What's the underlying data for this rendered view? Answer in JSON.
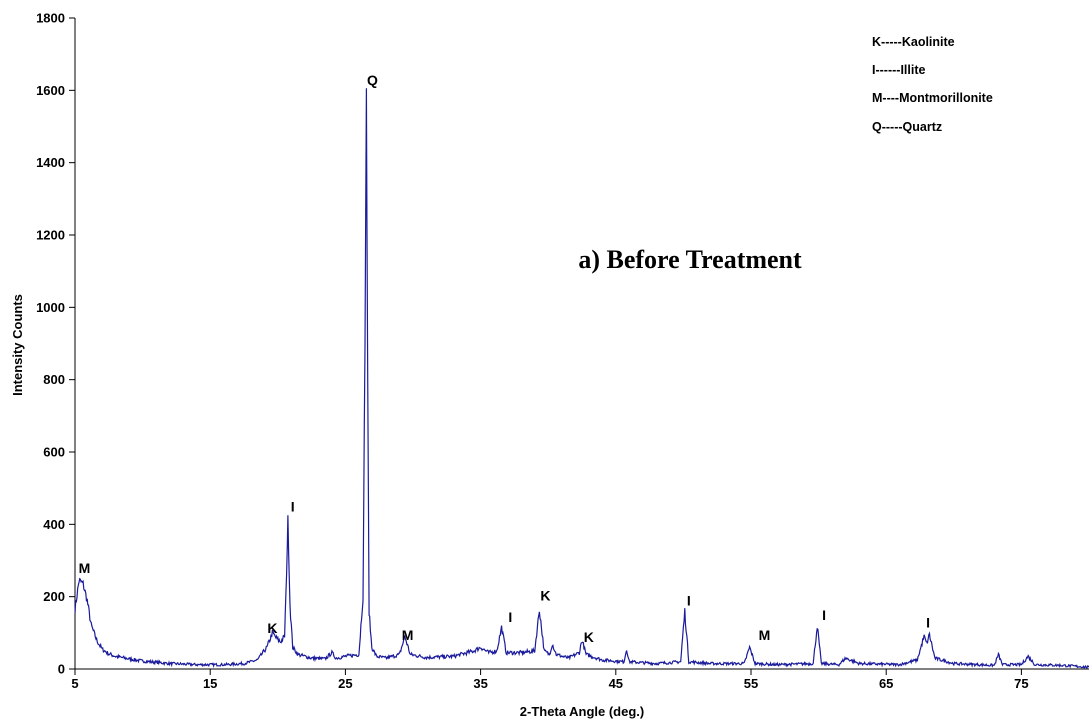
{
  "chart_data": {
    "type": "line",
    "title": "a) Before Treatment",
    "xlabel": "2-Theta Angle (deg.)",
    "ylabel": "Intensity Counts",
    "xlim": [
      5,
      80
    ],
    "ylim": [
      0,
      1800
    ],
    "x_ticks": [
      "5",
      "15",
      "25",
      "35",
      "45",
      "55",
      "65",
      "75"
    ],
    "y_ticks": [
      "0",
      "200",
      "400",
      "600",
      "800",
      "1000",
      "1200",
      "1400",
      "1600",
      "1800"
    ],
    "line_color": "#1a1a9c",
    "legend": [
      "K-----Kaolinite",
      "I------Illite",
      "M----Montmorillonite",
      "Q-----Quartz"
    ],
    "legend_position": "top-right",
    "series": [
      {
        "x": [
          5.0,
          5.3,
          5.6,
          5.9,
          6.2,
          6.6,
          7.0,
          7.5,
          8.0,
          9.0,
          10.0,
          12.0,
          14.0,
          16.0,
          17.5,
          18.5,
          19.2,
          19.6,
          19.9,
          20.2,
          20.5,
          20.6,
          20.75,
          20.9,
          21.1,
          21.5,
          22.5,
          23.5,
          24.0,
          24.3,
          25.0,
          26.0,
          26.3,
          26.45,
          26.55,
          26.65,
          26.75,
          26.95,
          27.3,
          28.0,
          29.0,
          29.4,
          29.8,
          31.0,
          33.0,
          34.5,
          35.0,
          35.6,
          36.2,
          36.55,
          36.9,
          38.0,
          39.0,
          39.35,
          39.7,
          40.1,
          40.3,
          40.6,
          41.5,
          42.3,
          42.5,
          42.8,
          44.0,
          45.6,
          45.8,
          46.0,
          48.0,
          49.8,
          50.1,
          50.4,
          52.0,
          54.5,
          54.9,
          55.3,
          57.0,
          59.6,
          59.9,
          60.2,
          61.5,
          62.0,
          63.0,
          66.0,
          67.3,
          67.8,
          68.0,
          68.2,
          68.6,
          70.0,
          73.0,
          73.3,
          73.6,
          75.0,
          75.5,
          76.0,
          78.0,
          80.0
        ],
        "y": [
          165,
          245,
          235,
          190,
          120,
          80,
          55,
          42,
          35,
          28,
          22,
          15,
          12,
          12,
          15,
          25,
          60,
          100,
          85,
          75,
          90,
          200,
          415,
          180,
          60,
          40,
          30,
          28,
          45,
          30,
          35,
          40,
          200,
          900,
          1610,
          800,
          160,
          60,
          35,
          30,
          40,
          90,
          40,
          32,
          35,
          50,
          60,
          45,
          50,
          115,
          45,
          45,
          50,
          165,
          50,
          40,
          70,
          40,
          30,
          45,
          80,
          40,
          25,
          20,
          55,
          20,
          15,
          20,
          160,
          20,
          15,
          15,
          60,
          15,
          12,
          15,
          120,
          15,
          12,
          30,
          15,
          12,
          25,
          90,
          70,
          95,
          30,
          15,
          10,
          40,
          12,
          12,
          35,
          12,
          10,
          5
        ]
      }
    ],
    "annotations": [
      {
        "text": "M",
        "x": 5.7,
        "y": 265
      },
      {
        "text": "K",
        "x": 19.6,
        "y": 100
      },
      {
        "text": "I",
        "x": 21.1,
        "y": 435
      },
      {
        "text": "Q",
        "x": 27.0,
        "y": 1615
      },
      {
        "text": "M",
        "x": 29.6,
        "y": 80
      },
      {
        "text": "I",
        "x": 37.2,
        "y": 130
      },
      {
        "text": "K",
        "x": 39.8,
        "y": 190
      },
      {
        "text": "K",
        "x": 43.0,
        "y": 75
      },
      {
        "text": "I",
        "x": 50.4,
        "y": 175
      },
      {
        "text": "M",
        "x": 56.0,
        "y": 80
      },
      {
        "text": "I",
        "x": 60.4,
        "y": 135
      },
      {
        "text": "I",
        "x": 68.1,
        "y": 115
      }
    ]
  }
}
